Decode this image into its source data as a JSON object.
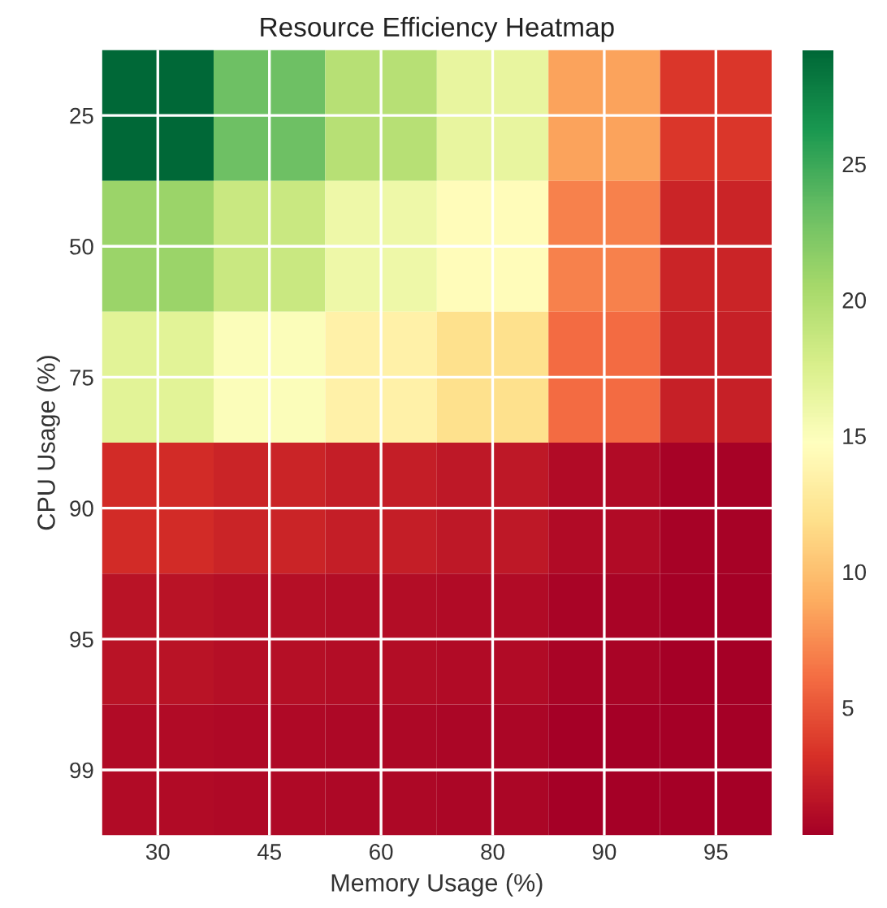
{
  "chart_data": {
    "type": "heatmap",
    "title": "Resource Efficiency Heatmap",
    "xlabel": "Memory Usage (%)",
    "ylabel": "CPU Usage (%)",
    "categories": [
      "30",
      "45",
      "60",
      "80",
      "90",
      "95"
    ],
    "y_categories": [
      "25",
      "50",
      "75",
      "90",
      "95",
      "99"
    ],
    "cells": [
      [
        29.2,
        23,
        19.5,
        16.5,
        8.5,
        3.5
      ],
      [
        21,
        18.5,
        16,
        14.5,
        7,
        2.5
      ],
      [
        17,
        15,
        13.5,
        12,
        6,
        2.3
      ],
      [
        3,
        2.5,
        2.2,
        1.8,
        1.0,
        0.5
      ],
      [
        1.5,
        1.3,
        1.2,
        1.0,
        0.6,
        0.3
      ],
      [
        1.0,
        0.9,
        0.8,
        0.7,
        0.4,
        0.3
      ]
    ],
    "clim": [
      0.3,
      29.2
    ],
    "cticks": [
      5,
      10,
      15,
      20,
      25
    ],
    "grid": true
  }
}
